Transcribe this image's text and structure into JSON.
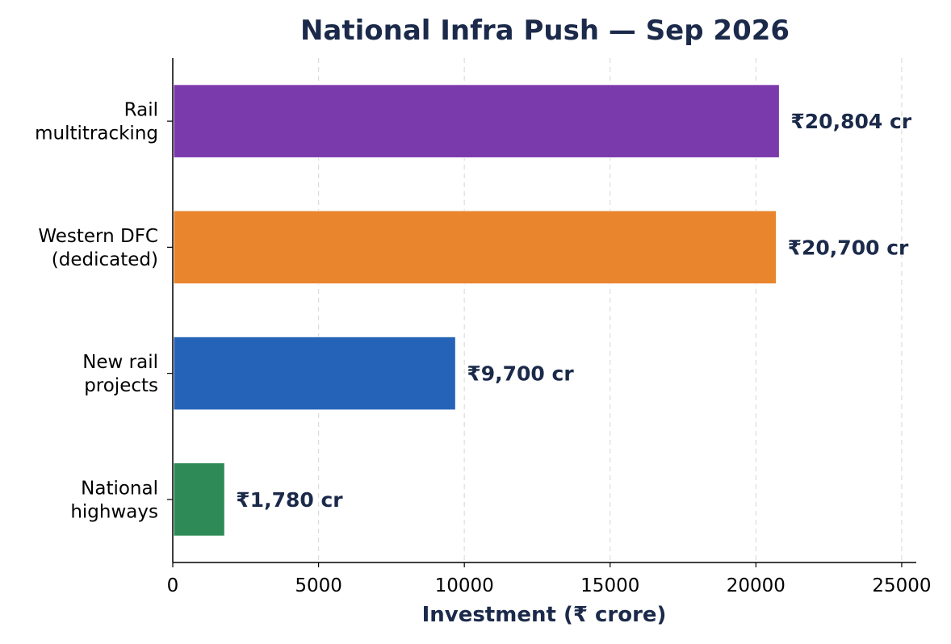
{
  "chart_data": {
    "type": "bar",
    "orientation": "horizontal",
    "title": "National Infra Push — Sep 2026",
    "xlabel": "Investment (₹ crore)",
    "ylabel": "",
    "xlim": [
      0,
      25500
    ],
    "xticks": [
      0,
      5000,
      10000,
      15000,
      20000,
      25000
    ],
    "grid": "x-dashed",
    "categories": [
      [
        "Rail",
        "multitracking"
      ],
      [
        "Western DFC",
        "(dedicated)"
      ],
      [
        "New rail",
        "projects"
      ],
      [
        "National",
        "highways"
      ]
    ],
    "values": [
      20804,
      20700,
      9700,
      1780
    ],
    "data_labels": [
      "₹20,804 cr",
      "₹20,700 cr",
      "₹9,700 cr",
      "₹1,780 cr"
    ],
    "colors": [
      "#7b3aab",
      "#e8852d",
      "#2563b8",
      "#2e8b57"
    ]
  }
}
